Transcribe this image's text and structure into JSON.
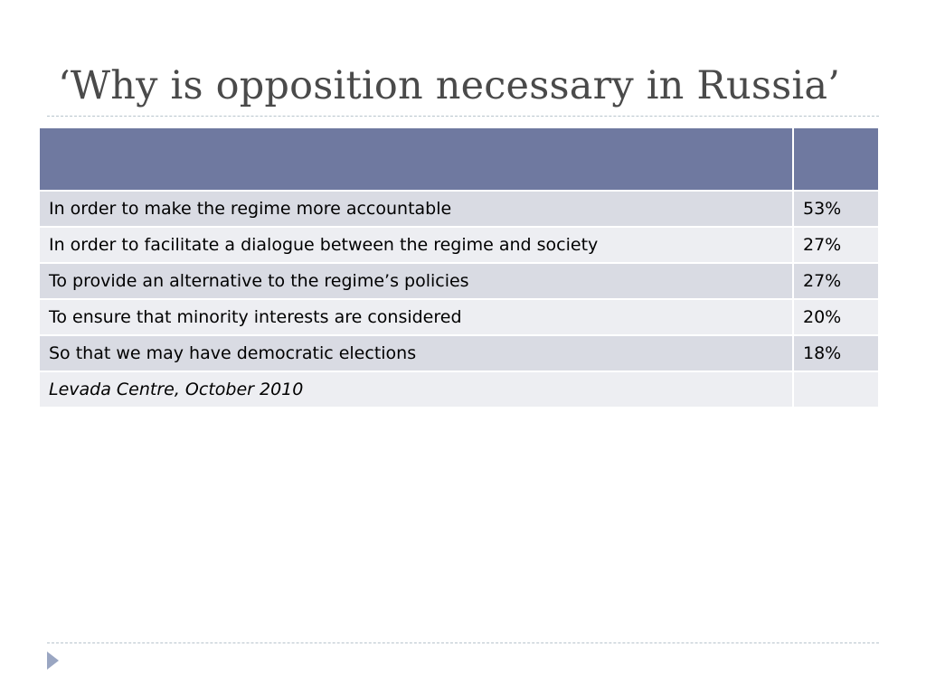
{
  "slide": {
    "title": "‘Why is opposition necessary in Russia’"
  },
  "table": {
    "header": [
      "",
      ""
    ],
    "rows": [
      {
        "reason": "In order to make the regime more accountable",
        "percent": "53%"
      },
      {
        "reason": "In order to facilitate a dialogue between the regime and society",
        "percent": "27%"
      },
      {
        "reason": "To provide an alternative to the regime’s policies",
        "percent": "27%"
      },
      {
        "reason": "To ensure that minority interests are considered",
        "percent": "20%"
      },
      {
        "reason": "So that we may have democratic elections",
        "percent": "18%"
      }
    ],
    "source": "Levada Centre, October 2010"
  },
  "colors": {
    "header_fill": "#6f79a0",
    "band_dark": "#d9dbe3",
    "band_light": "#edeef2",
    "title_text": "#4a4a4a",
    "nav_arrow": "#9aa6c2"
  },
  "icons": {
    "nav": "triangle-right-icon"
  }
}
